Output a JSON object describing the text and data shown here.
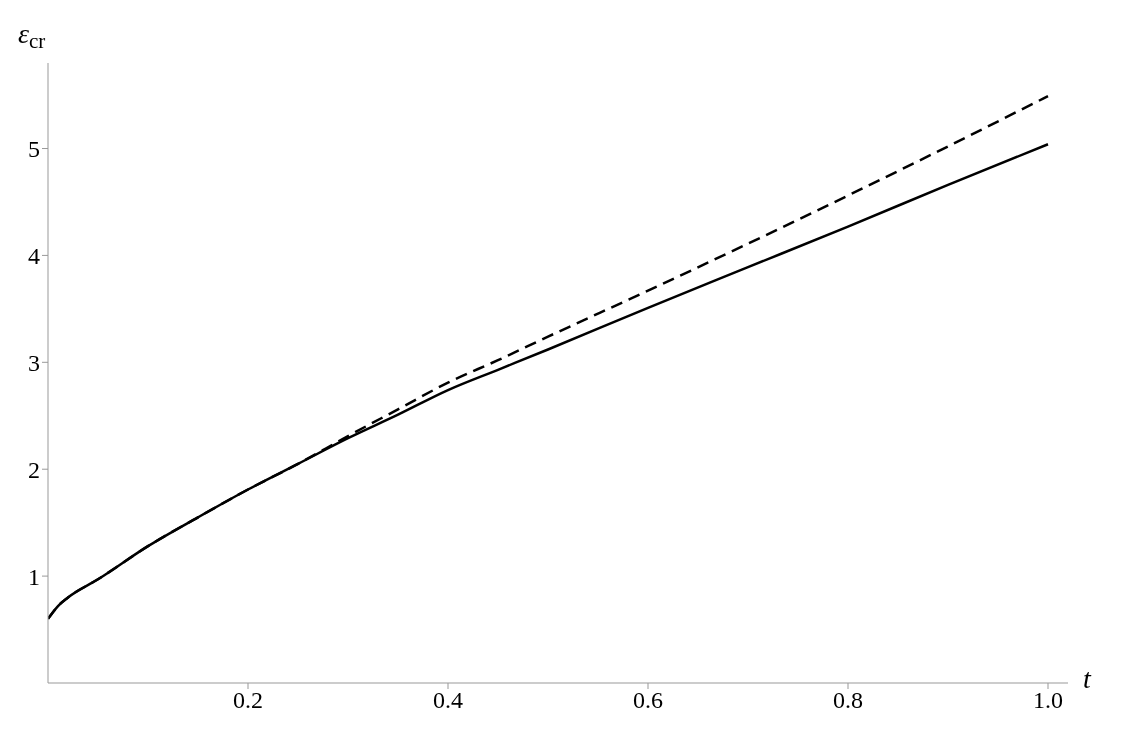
{
  "chart_data": {
    "type": "line",
    "xlabel": "t",
    "ylabel": "ε$_{cr}$",
    "xlim": [
      0,
      1.02
    ],
    "ylim": [
      0,
      5.8
    ],
    "xticks": [
      0.2,
      0.4,
      0.6,
      0.8,
      {
        "value": 1,
        "label": "1.0"
      }
    ],
    "yticks": [
      1,
      2,
      3,
      4,
      5
    ],
    "marker": "none",
    "series": [
      {
        "color": "#000000",
        "line_style": "solid",
        "x": [
          0,
          0.01,
          0.02,
          0.05,
          0.1,
          0.15,
          0.2,
          0.25,
          0.3,
          0.35,
          0.4,
          0.45,
          0.5,
          0.6,
          0.7,
          0.8,
          0.9,
          1.0
        ],
        "values": [
          0.6,
          0.72,
          0.8,
          0.97,
          1.28,
          1.55,
          1.81,
          2.05,
          2.29,
          2.51,
          2.74,
          2.93,
          3.12,
          3.51,
          3.89,
          4.27,
          4.66,
          5.04
        ]
      },
      {
        "color": "#000000",
        "line_style": "dashed",
        "x": [
          0,
          0.01,
          0.02,
          0.05,
          0.1,
          0.15,
          0.2,
          0.25,
          0.3,
          0.35,
          0.4,
          0.45,
          0.5,
          0.6,
          0.7,
          0.8,
          0.9,
          1.0
        ],
        "values": [
          0.6,
          0.72,
          0.8,
          0.97,
          1.28,
          1.55,
          1.81,
          2.05,
          2.31,
          2.56,
          2.81,
          3.02,
          3.24,
          3.67,
          4.11,
          4.56,
          5.02,
          5.49
        ]
      }
    ]
  }
}
